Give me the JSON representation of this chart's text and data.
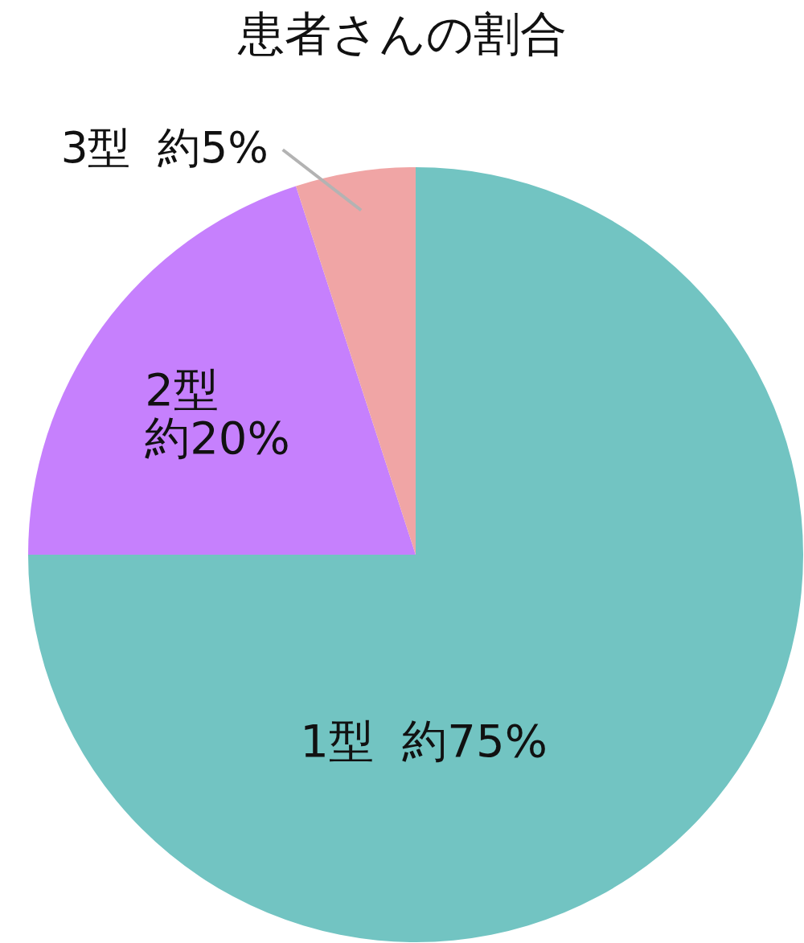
{
  "chart_data": {
    "type": "pie",
    "title": "患者さんの割合",
    "categories": [
      "1型",
      "2型",
      "3型"
    ],
    "values": [
      75,
      20,
      5
    ],
    "colors": [
      "#72c4c2",
      "#c680fd",
      "#f0a5a5"
    ],
    "value_labels": [
      "約75%",
      "約20%",
      "約5%"
    ]
  }
}
